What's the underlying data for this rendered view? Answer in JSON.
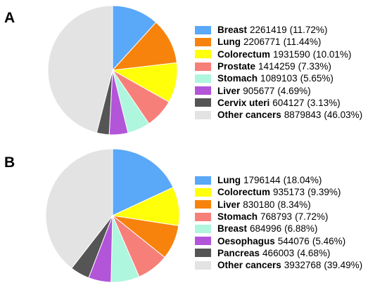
{
  "chart_data": [
    {
      "type": "pie",
      "panel": "A",
      "slices": [
        {
          "name": "Breast",
          "count": "2261419",
          "percent": "(11.72%)",
          "value": 11.72,
          "color": "#5aa8f8"
        },
        {
          "name": "Lung",
          "count": "2206771",
          "percent": "(11.44%)",
          "value": 11.44,
          "color": "#f7830c"
        },
        {
          "name": "Colorectum",
          "count": "1931590",
          "percent": "(10.01%)",
          "value": 10.01,
          "color": "#ffff09"
        },
        {
          "name": "Prostate",
          "count": "1414259",
          "percent": "(7.33%)",
          "value": 7.33,
          "color": "#f77f7a"
        },
        {
          "name": "Stomach",
          "count": "1089103",
          "percent": "(5.65%)",
          "value": 5.65,
          "color": "#aef6de"
        },
        {
          "name": "Liver",
          "count": "905677",
          "percent": "(4.69%)",
          "value": 4.69,
          "color": "#b255d8"
        },
        {
          "name": "Cervix uteri",
          "count": "604127",
          "percent": "(3.13%)",
          "value": 3.13,
          "color": "#555555"
        },
        {
          "name": "Other cancers",
          "count": "8879843",
          "percent": "(46.03%)",
          "value": 46.03,
          "color": "#e3e3e3"
        }
      ]
    },
    {
      "type": "pie",
      "panel": "B",
      "slices": [
        {
          "name": "Lung",
          "count": "1796144",
          "percent": "(18.04%)",
          "value": 18.04,
          "color": "#5aa8f8"
        },
        {
          "name": "Colorectum",
          "count": "935173",
          "percent": "(9.39%)",
          "value": 9.39,
          "color": "#ffff09"
        },
        {
          "name": "Liver",
          "count": "830180",
          "percent": "(8.34%)",
          "value": 8.34,
          "color": "#f7830c"
        },
        {
          "name": "Stomach",
          "count": "768793",
          "percent": "(7.72%)",
          "value": 7.72,
          "color": "#f77f7a"
        },
        {
          "name": "Breast",
          "count": "684996",
          "percent": "(6.88%)",
          "value": 6.88,
          "color": "#aef6de"
        },
        {
          "name": "Oesophagus",
          "count": "544076",
          "percent": "(5.46%)",
          "value": 5.46,
          "color": "#b255d8"
        },
        {
          "name": "Pancreas",
          "count": "466003",
          "percent": "(4.68%)",
          "value": 4.68,
          "color": "#555555"
        },
        {
          "name": "Other cancers",
          "count": "3932768",
          "percent": "(39.49%)",
          "value": 39.49,
          "color": "#e3e3e3"
        }
      ]
    }
  ]
}
